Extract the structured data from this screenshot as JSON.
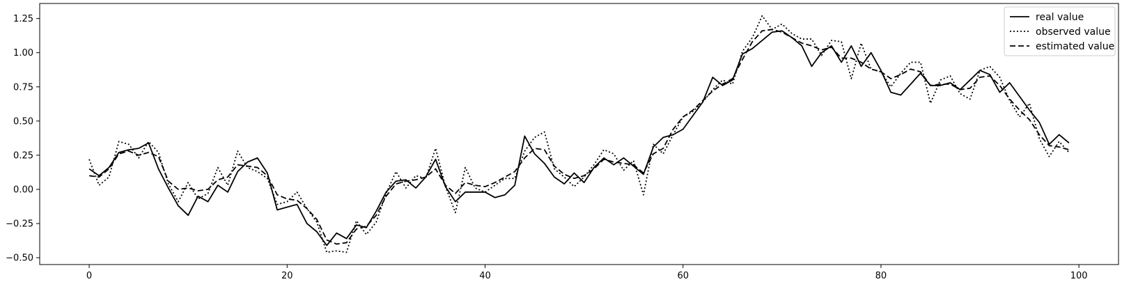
{
  "chart_data": {
    "type": "line",
    "title": "",
    "xlabel": "",
    "ylabel": "",
    "xlim": [
      -5,
      104
    ],
    "ylim": [
      -0.55,
      1.36
    ],
    "x_ticks": [
      0,
      20,
      40,
      60,
      80,
      100
    ],
    "y_ticks": [
      -0.5,
      -0.25,
      0.0,
      0.25,
      0.5,
      0.75,
      1.0,
      1.25
    ],
    "x_tick_labels": [
      "0",
      "20",
      "40",
      "60",
      "80",
      "100"
    ],
    "y_tick_labels": [
      "−0.50",
      "−0.25",
      "0.00",
      "0.25",
      "0.50",
      "0.75",
      "1.00",
      "1.25"
    ],
    "grid": false,
    "legend_position": "top-right",
    "series": [
      {
        "name": "real value",
        "style": "solid",
        "color": "#000000",
        "values": [
          0.15,
          0.1,
          0.16,
          0.27,
          0.29,
          0.3,
          0.34,
          0.15,
          0.01,
          -0.12,
          -0.19,
          -0.05,
          -0.09,
          0.03,
          -0.02,
          0.13,
          0.2,
          0.23,
          0.12,
          -0.15,
          -0.13,
          -0.11,
          -0.25,
          -0.31,
          -0.41,
          -0.32,
          -0.36,
          -0.26,
          -0.28,
          -0.16,
          -0.02,
          0.06,
          0.07,
          0.01,
          0.09,
          0.22,
          0.02,
          -0.09,
          -0.02,
          -0.02,
          -0.02,
          -0.06,
          -0.04,
          0.03,
          0.39,
          0.26,
          0.19,
          0.09,
          0.04,
          0.12,
          0.05,
          0.16,
          0.23,
          0.18,
          0.23,
          0.17,
          0.11,
          0.31,
          0.38,
          0.4,
          0.44,
          0.54,
          0.64,
          0.82,
          0.76,
          0.8,
          0.99,
          1.03,
          1.09,
          1.15,
          1.16,
          1.11,
          1.05,
          0.9,
          1.0,
          1.05,
          0.93,
          1.05,
          0.9,
          1.0,
          0.87,
          0.71,
          0.69,
          0.77,
          0.85,
          0.76,
          0.76,
          0.78,
          0.73,
          0.8,
          0.87,
          0.84,
          0.71,
          0.78,
          0.68,
          0.58,
          0.49,
          0.33,
          0.4,
          0.34
        ]
      },
      {
        "name": "observed value",
        "style": "dotted",
        "color": "#000000",
        "values": [
          0.22,
          0.03,
          0.09,
          0.35,
          0.33,
          0.23,
          0.35,
          0.27,
          0.04,
          -0.09,
          0.05,
          -0.07,
          -0.03,
          0.16,
          0.03,
          0.28,
          0.16,
          0.13,
          0.08,
          -0.11,
          -0.09,
          -0.02,
          -0.14,
          -0.24,
          -0.46,
          -0.45,
          -0.46,
          -0.23,
          -0.33,
          -0.24,
          -0.03,
          0.13,
          0.01,
          0.1,
          0.08,
          0.3,
          0.02,
          -0.17,
          0.16,
          0.01,
          -0.02,
          0.03,
          0.08,
          0.08,
          0.28,
          0.38,
          0.42,
          0.15,
          0.09,
          0.02,
          0.09,
          0.18,
          0.29,
          0.26,
          0.14,
          0.21,
          -0.04,
          0.33,
          0.26,
          0.4,
          0.53,
          0.57,
          0.64,
          0.73,
          0.8,
          0.77,
          1.01,
          1.11,
          1.27,
          1.17,
          1.21,
          1.14,
          1.1,
          1.1,
          0.98,
          1.09,
          1.08,
          0.81,
          1.07,
          0.88,
          0.86,
          0.75,
          0.85,
          0.93,
          0.93,
          0.63,
          0.8,
          0.83,
          0.7,
          0.66,
          0.87,
          0.9,
          0.82,
          0.65,
          0.53,
          0.63,
          0.37,
          0.24,
          0.35,
          0.27
        ]
      },
      {
        "name": "estimated value",
        "style": "dashed",
        "color": "#000000",
        "values": [
          0.1,
          0.09,
          0.15,
          0.26,
          0.28,
          0.25,
          0.27,
          0.24,
          0.06,
          0.0,
          0.01,
          -0.01,
          0.0,
          0.07,
          0.09,
          0.18,
          0.17,
          0.16,
          0.1,
          -0.04,
          -0.07,
          -0.08,
          -0.14,
          -0.22,
          -0.37,
          -0.4,
          -0.39,
          -0.29,
          -0.27,
          -0.19,
          -0.05,
          0.04,
          0.06,
          0.07,
          0.09,
          0.15,
          0.03,
          -0.03,
          0.05,
          0.03,
          0.02,
          0.05,
          0.09,
          0.13,
          0.23,
          0.3,
          0.29,
          0.17,
          0.11,
          0.08,
          0.1,
          0.15,
          0.22,
          0.2,
          0.19,
          0.18,
          0.12,
          0.26,
          0.3,
          0.44,
          0.53,
          0.58,
          0.65,
          0.72,
          0.77,
          0.81,
          0.95,
          1.08,
          1.16,
          1.17,
          1.15,
          1.11,
          1.07,
          1.05,
          1.02,
          1.04,
          0.96,
          0.96,
          0.93,
          0.88,
          0.86,
          0.81,
          0.84,
          0.88,
          0.86,
          0.76,
          0.77,
          0.77,
          0.73,
          0.74,
          0.82,
          0.83,
          0.76,
          0.66,
          0.58,
          0.51,
          0.4,
          0.32,
          0.31,
          0.29
        ]
      }
    ]
  }
}
